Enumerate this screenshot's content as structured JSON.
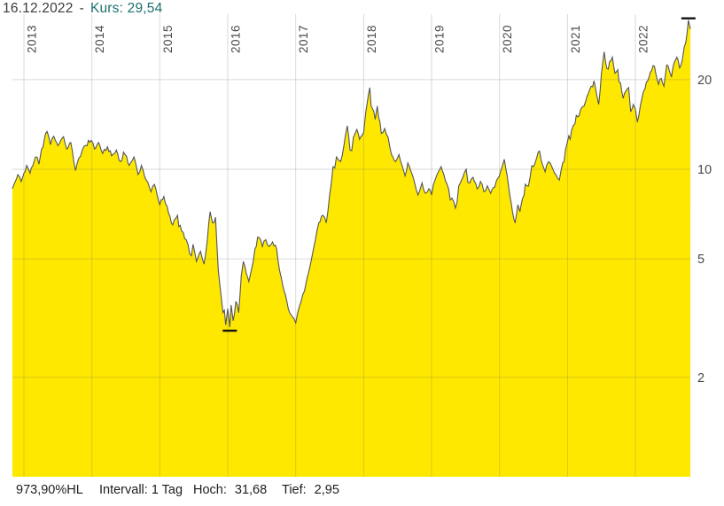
{
  "header": {
    "date": "16.12.2022",
    "separator": "-",
    "kurs_label": "Kurs:",
    "kurs_value": "29,54"
  },
  "status_bar": {
    "percent_hl": "973,90%HL",
    "interval_label": "Intervall:",
    "interval_value": "1 Tag",
    "high_label": "Hoch:",
    "high_value": "31,68",
    "low_label": "Tief:",
    "low_value": "2,95"
  },
  "colors": {
    "area_fill": "#ffe800",
    "price_line": "#53555a",
    "grid": "rgba(100,100,100,0.24)",
    "axis_text": "#4a4a4a",
    "marker": "#111111",
    "kurs_text": "#1d6e6e"
  },
  "chart_data": {
    "type": "area",
    "title": "",
    "xlabel": "",
    "ylabel": "",
    "y_scale": "log",
    "grid": true,
    "x_ticks": [
      "2013",
      "2014",
      "2015",
      "2016",
      "2017",
      "2018",
      "2019",
      "2020",
      "2021",
      "2022"
    ],
    "y_ticks": [
      20,
      10,
      5,
      2
    ],
    "y_range_visible": [
      0.93,
      35
    ],
    "x_range_years": [
      2012.83,
      2022.81
    ],
    "high_marker": {
      "year": 2022.78,
      "value": 31.68
    },
    "low_marker": {
      "year": 2016.03,
      "value": 2.95
    },
    "series": [
      {
        "name": "Kurs",
        "points": [
          [
            2012.83,
            8.6
          ],
          [
            2012.91,
            9.6
          ],
          [
            2012.96,
            9.1
          ],
          [
            2013.04,
            10.3
          ],
          [
            2013.09,
            9.7
          ],
          [
            2013.17,
            11.0
          ],
          [
            2013.22,
            10.4
          ],
          [
            2013.3,
            12.6
          ],
          [
            2013.34,
            13.4
          ],
          [
            2013.39,
            12.1
          ],
          [
            2013.44,
            12.9
          ],
          [
            2013.5,
            12.0
          ],
          [
            2013.56,
            12.7
          ],
          [
            2013.63,
            11.7
          ],
          [
            2013.69,
            12.3
          ],
          [
            2013.76,
            9.9
          ],
          [
            2013.81,
            10.9
          ],
          [
            2013.86,
            11.6
          ],
          [
            2013.93,
            12.0
          ],
          [
            2013.99,
            12.5
          ],
          [
            2014.04,
            11.7
          ],
          [
            2014.1,
            12.3
          ],
          [
            2014.16,
            11.3
          ],
          [
            2014.23,
            11.9
          ],
          [
            2014.29,
            11.1
          ],
          [
            2014.36,
            11.6
          ],
          [
            2014.42,
            10.6
          ],
          [
            2014.49,
            11.2
          ],
          [
            2014.55,
            10.3
          ],
          [
            2014.62,
            11.0
          ],
          [
            2014.68,
            9.6
          ],
          [
            2014.73,
            10.3
          ],
          [
            2014.8,
            9.2
          ],
          [
            2014.87,
            8.4
          ],
          [
            2014.92,
            8.9
          ],
          [
            2015.0,
            7.6
          ],
          [
            2015.06,
            8.1
          ],
          [
            2015.13,
            7.1
          ],
          [
            2015.19,
            6.5
          ],
          [
            2015.26,
            7.0
          ],
          [
            2015.32,
            6.2
          ],
          [
            2015.39,
            5.8
          ],
          [
            2015.44,
            5.2
          ],
          [
            2015.49,
            5.6
          ],
          [
            2015.54,
            4.9
          ],
          [
            2015.6,
            5.3
          ],
          [
            2015.65,
            4.8
          ],
          [
            2015.7,
            5.8
          ],
          [
            2015.74,
            7.2
          ],
          [
            2015.78,
            6.6
          ],
          [
            2015.82,
            6.9
          ],
          [
            2015.86,
            4.6
          ],
          [
            2015.9,
            3.8
          ],
          [
            2015.93,
            3.3
          ],
          [
            2015.97,
            3.0
          ],
          [
            2016.0,
            3.4
          ],
          [
            2016.03,
            2.95
          ],
          [
            2016.05,
            3.5
          ],
          [
            2016.08,
            3.1
          ],
          [
            2016.12,
            3.6
          ],
          [
            2016.16,
            3.3
          ],
          [
            2016.2,
            4.4
          ],
          [
            2016.23,
            4.9
          ],
          [
            2016.27,
            4.5
          ],
          [
            2016.31,
            4.2
          ],
          [
            2016.35,
            4.6
          ],
          [
            2016.4,
            5.4
          ],
          [
            2016.46,
            5.9
          ],
          [
            2016.51,
            5.5
          ],
          [
            2016.56,
            5.8
          ],
          [
            2016.61,
            5.5
          ],
          [
            2016.66,
            5.7
          ],
          [
            2016.72,
            5.4
          ],
          [
            2016.76,
            4.6
          ],
          [
            2016.79,
            4.3
          ],
          [
            2016.83,
            3.9
          ],
          [
            2016.87,
            3.6
          ],
          [
            2016.91,
            3.3
          ],
          [
            2016.95,
            3.2
          ],
          [
            2017.0,
            3.05
          ],
          [
            2017.03,
            3.3
          ],
          [
            2017.08,
            3.6
          ],
          [
            2017.13,
            3.9
          ],
          [
            2017.19,
            4.5
          ],
          [
            2017.24,
            5.1
          ],
          [
            2017.29,
            5.8
          ],
          [
            2017.34,
            6.6
          ],
          [
            2017.4,
            7.0
          ],
          [
            2017.45,
            6.6
          ],
          [
            2017.5,
            8.2
          ],
          [
            2017.55,
            10.2
          ],
          [
            2017.6,
            11.0
          ],
          [
            2017.66,
            10.6
          ],
          [
            2017.71,
            12.0
          ],
          [
            2017.76,
            14.0
          ],
          [
            2017.8,
            11.6
          ],
          [
            2017.85,
            12.8
          ],
          [
            2017.9,
            13.6
          ],
          [
            2017.94,
            12.6
          ],
          [
            2018.0,
            13.3
          ],
          [
            2018.03,
            15.5
          ],
          [
            2018.09,
            18.8
          ],
          [
            2018.13,
            16.0
          ],
          [
            2018.17,
            14.7
          ],
          [
            2018.2,
            16.3
          ],
          [
            2018.26,
            13.2
          ],
          [
            2018.31,
            13.7
          ],
          [
            2018.36,
            12.8
          ],
          [
            2018.41,
            11.2
          ],
          [
            2018.47,
            10.6
          ],
          [
            2018.52,
            11.2
          ],
          [
            2018.57,
            10.2
          ],
          [
            2018.61,
            9.5
          ],
          [
            2018.65,
            10.5
          ],
          [
            2018.7,
            9.8
          ],
          [
            2018.75,
            9.0
          ],
          [
            2018.8,
            8.2
          ],
          [
            2018.86,
            9.0
          ],
          [
            2018.91,
            8.3
          ],
          [
            2018.96,
            8.6
          ],
          [
            2019.0,
            8.2
          ],
          [
            2019.05,
            9.2
          ],
          [
            2019.1,
            9.8
          ],
          [
            2019.14,
            10.2
          ],
          [
            2019.2,
            9.2
          ],
          [
            2019.25,
            8.6
          ],
          [
            2019.3,
            8.0
          ],
          [
            2019.35,
            7.4
          ],
          [
            2019.4,
            8.8
          ],
          [
            2019.46,
            9.4
          ],
          [
            2019.51,
            10.0
          ],
          [
            2019.56,
            9.0
          ],
          [
            2019.61,
            9.4
          ],
          [
            2019.67,
            8.6
          ],
          [
            2019.72,
            9.1
          ],
          [
            2019.77,
            8.4
          ],
          [
            2019.82,
            8.8
          ],
          [
            2019.87,
            8.3
          ],
          [
            2019.93,
            8.7
          ],
          [
            2019.97,
            9.3
          ],
          [
            2020.02,
            9.9
          ],
          [
            2020.07,
            10.8
          ],
          [
            2020.11,
            9.6
          ],
          [
            2020.15,
            8.2
          ],
          [
            2020.19,
            7.2
          ],
          [
            2020.23,
            6.6
          ],
          [
            2020.27,
            7.6
          ],
          [
            2020.3,
            7.2
          ],
          [
            2020.34,
            8.0
          ],
          [
            2020.4,
            8.8
          ],
          [
            2020.45,
            9.4
          ],
          [
            2020.5,
            10.2
          ],
          [
            2020.55,
            11.0
          ],
          [
            2020.59,
            11.5
          ],
          [
            2020.63,
            10.4
          ],
          [
            2020.67,
            9.8
          ],
          [
            2020.72,
            10.6
          ],
          [
            2020.77,
            10.2
          ],
          [
            2020.83,
            9.6
          ],
          [
            2020.88,
            9.2
          ],
          [
            2020.93,
            10.5
          ],
          [
            2020.97,
            11.6
          ],
          [
            2021.0,
            12.4
          ],
          [
            2021.06,
            13.5
          ],
          [
            2021.11,
            14.2
          ],
          [
            2021.17,
            15.1
          ],
          [
            2021.22,
            16.2
          ],
          [
            2021.27,
            17.0
          ],
          [
            2021.31,
            18.0
          ],
          [
            2021.35,
            19.0
          ],
          [
            2021.39,
            19.8
          ],
          [
            2021.43,
            17.8
          ],
          [
            2021.46,
            16.5
          ],
          [
            2021.5,
            21.0
          ],
          [
            2021.54,
            24.8
          ],
          [
            2021.58,
            21.8
          ],
          [
            2021.62,
            23.0
          ],
          [
            2021.66,
            23.8
          ],
          [
            2021.7,
            21.0
          ],
          [
            2021.74,
            21.6
          ],
          [
            2021.78,
            19.5
          ],
          [
            2021.82,
            17.3
          ],
          [
            2021.86,
            18.3
          ],
          [
            2021.9,
            18.8
          ],
          [
            2021.93,
            15.6
          ],
          [
            2021.97,
            16.5
          ],
          [
            2022.0,
            15.9
          ],
          [
            2022.03,
            14.4
          ],
          [
            2022.07,
            16.2
          ],
          [
            2022.1,
            17.5
          ],
          [
            2022.14,
            18.6
          ],
          [
            2022.18,
            19.8
          ],
          [
            2022.22,
            21.2
          ],
          [
            2022.26,
            22.3
          ],
          [
            2022.3,
            21.0
          ],
          [
            2022.34,
            19.3
          ],
          [
            2022.38,
            20.2
          ],
          [
            2022.42,
            19.0
          ],
          [
            2022.46,
            22.4
          ],
          [
            2022.5,
            21.4
          ],
          [
            2022.53,
            20.4
          ],
          [
            2022.57,
            22.8
          ],
          [
            2022.61,
            23.8
          ],
          [
            2022.65,
            21.9
          ],
          [
            2022.69,
            23.3
          ],
          [
            2022.72,
            25.8
          ],
          [
            2022.76,
            28.6
          ],
          [
            2022.78,
            31.68
          ],
          [
            2022.81,
            29.54
          ]
        ]
      }
    ]
  }
}
